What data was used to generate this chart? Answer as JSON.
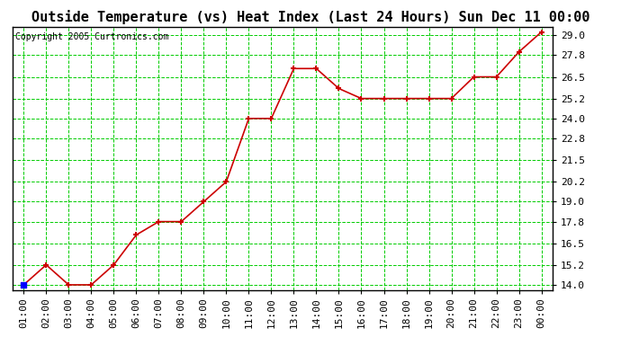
{
  "title": "Outside Temperature (vs) Heat Index (Last 24 Hours) Sun Dec 11 00:00",
  "copyright": "Copyright 2005 Curtronics.com",
  "x_labels": [
    "01:00",
    "02:00",
    "03:00",
    "04:00",
    "05:00",
    "06:00",
    "07:00",
    "08:00",
    "09:00",
    "10:00",
    "11:00",
    "12:00",
    "13:00",
    "14:00",
    "15:00",
    "16:00",
    "17:00",
    "18:00",
    "19:00",
    "20:00",
    "21:00",
    "22:00",
    "23:00",
    "00:00"
  ],
  "y_values": [
    14.0,
    15.2,
    14.0,
    14.0,
    15.2,
    17.0,
    17.8,
    17.8,
    19.0,
    20.2,
    24.0,
    24.0,
    27.0,
    27.0,
    25.8,
    25.2,
    25.2,
    25.2,
    25.2,
    25.2,
    26.5,
    26.5,
    28.0,
    29.2
  ],
  "y_ticks": [
    14.0,
    15.2,
    16.5,
    17.8,
    19.0,
    20.2,
    21.5,
    22.8,
    24.0,
    25.2,
    26.5,
    27.8,
    29.0
  ],
  "y_min": 13.7,
  "y_max": 29.5,
  "line_color": "#cc0000",
  "marker_color": "#cc0000",
  "background_color": "#ffffff",
  "grid_color": "#00cc00",
  "title_fontsize": 11,
  "copyright_fontsize": 7,
  "tick_fontsize": 8
}
